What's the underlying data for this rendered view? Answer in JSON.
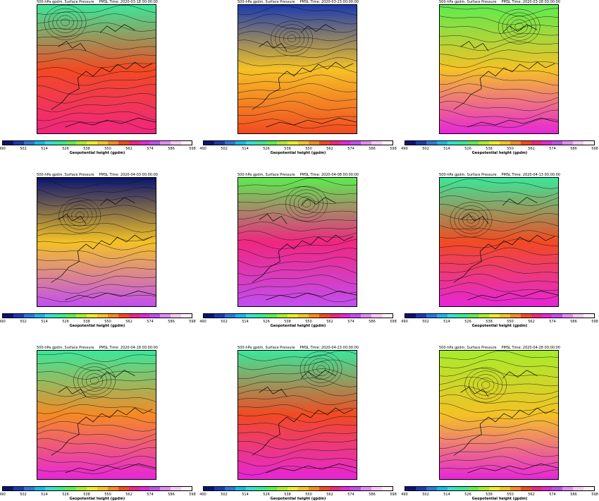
{
  "figure": {
    "panel_left_title": "500-hPa gpdm, Surface Pressure",
    "colorbar_label": "Geopotential height (gpdm)",
    "colorbar_ticks": [
      "490",
      "502",
      "514",
      "526",
      "538",
      "550",
      "562",
      "574",
      "586",
      "598"
    ],
    "colorbar_colors": [
      "#0a1470",
      "#1c3ab0",
      "#2a78d8",
      "#18b8e8",
      "#34e0d4",
      "#3ae89a",
      "#5cec50",
      "#a6ec2c",
      "#e8ec2a",
      "#f4c226",
      "#f68a24",
      "#f24a22",
      "#f02680",
      "#e626d8",
      "#c24ef0",
      "#e08cf0",
      "#f6c8f6",
      "#fff0fa"
    ]
  },
  "panels": [
    {
      "time": "PMSL Time: 2020-03-18 00:00:00",
      "low_lat_color": "#f02680",
      "mid_color": "#f24a22",
      "high_color": "#3ae89a"
    },
    {
      "time": "PMSL Time: 2020-03-23 00:00:00",
      "low_lat_color": "#f24a22",
      "mid_color": "#f4c226",
      "high_color": "#1c3ab0"
    },
    {
      "time": "PMSL Time: 2020-03-28 00:00:00",
      "low_lat_color": "#e626d8",
      "mid_color": "#f4c226",
      "high_color": "#5cec50"
    },
    {
      "time": "PMSL Time: 2020-04-03 00:00:00",
      "low_lat_color": "#c24ef0",
      "mid_color": "#f4c226",
      "high_color": "#0a1470"
    },
    {
      "time": "PMSL Time: 2020-04-08 00:00:00",
      "low_lat_color": "#c24ef0",
      "mid_color": "#f02680",
      "high_color": "#5cec50"
    },
    {
      "time": "PMSL Time: 2020-04-13 00:00:00",
      "low_lat_color": "#e626d8",
      "mid_color": "#f24a22",
      "high_color": "#3ae89a"
    },
    {
      "time": "PMSL Time: 2020-04-18 00:00:00",
      "low_lat_color": "#e626d8",
      "mid_color": "#f68a24",
      "high_color": "#3ae89a"
    },
    {
      "time": "PMSL Time: 2020-04-23 00:00:00",
      "low_lat_color": "#e626d8",
      "mid_color": "#f24a22",
      "high_color": "#3ae89a"
    },
    {
      "time": "PMSL Time: 2020-04-28 00:00:00",
      "low_lat_color": "#e626d8",
      "mid_color": "#f4c226",
      "high_color": "#a6ec2c"
    }
  ]
}
